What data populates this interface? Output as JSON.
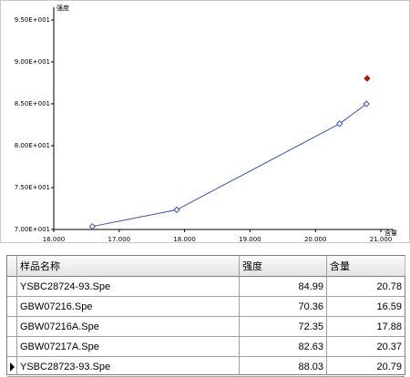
{
  "chart_data": {
    "type": "line",
    "ylabel": "强度",
    "xlabel": "含量",
    "xlim": [
      16,
      21
    ],
    "ylim": [
      70,
      95
    ],
    "xticks": [
      {
        "value": 16,
        "label": "16.000"
      },
      {
        "value": 17,
        "label": "17.000"
      },
      {
        "value": 18,
        "label": "18.000"
      },
      {
        "value": 19,
        "label": "19.000"
      },
      {
        "value": 20,
        "label": "20.000"
      },
      {
        "value": 21,
        "label": "21.000"
      }
    ],
    "yticks": [
      {
        "value": 70,
        "label": "7.00E+001"
      },
      {
        "value": 75,
        "label": "7.50E+001"
      },
      {
        "value": 80,
        "label": "8.00E+001"
      },
      {
        "value": 85,
        "label": "8.50E+001"
      },
      {
        "value": 90,
        "label": "9.00E+001"
      },
      {
        "value": 95,
        "label": "9.50E+001"
      }
    ],
    "series": [
      {
        "type": "line",
        "color": "#3a4fc0",
        "x": [
          16.59,
          17.88,
          20.37,
          20.78
        ],
        "values": [
          70.36,
          72.35,
          82.63,
          84.99
        ]
      },
      {
        "type": "scatter",
        "color": "#b01818",
        "x": [
          20.79
        ],
        "values": [
          88.03
        ]
      }
    ]
  },
  "table": {
    "columns": [
      "样品名称",
      "强度",
      "含量"
    ],
    "rows": [
      [
        "YSBC28724-93.Spe",
        84.99,
        20.78
      ],
      [
        "GBW07216.Spe",
        70.36,
        16.59
      ],
      [
        "GBW07216A.Spe",
        72.35,
        17.88
      ],
      [
        "GBW07217A.Spe",
        82.63,
        20.37
      ],
      [
        "YSBC28723-93.Spe",
        88.03,
        20.79
      ]
    ],
    "selected_row": 4
  }
}
